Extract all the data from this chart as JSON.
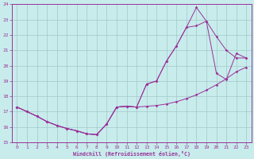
{
  "xlabel": "Windchill (Refroidissement éolien,°C)",
  "background_color": "#c8ecec",
  "line_color": "#993399",
  "grid_color": "#a0c8c8",
  "xlim": [
    -0.5,
    23.5
  ],
  "ylim": [
    15,
    24
  ],
  "yticks": [
    15,
    16,
    17,
    18,
    19,
    20,
    21,
    22,
    23,
    24
  ],
  "xticks": [
    0,
    1,
    2,
    3,
    4,
    5,
    6,
    7,
    8,
    9,
    10,
    11,
    12,
    13,
    14,
    15,
    16,
    17,
    18,
    19,
    20,
    21,
    22,
    23
  ],
  "line1_x": [
    0,
    1,
    2,
    3,
    4,
    5,
    6,
    7,
    8,
    9,
    10,
    11,
    12,
    13,
    14,
    15,
    16,
    17,
    18,
    19,
    20,
    21,
    22,
    23
  ],
  "line1_y": [
    17.3,
    17.0,
    16.7,
    16.35,
    16.1,
    15.9,
    15.75,
    15.55,
    15.5,
    16.2,
    17.3,
    17.35,
    17.3,
    17.35,
    17.4,
    17.5,
    17.65,
    17.85,
    18.1,
    18.4,
    18.75,
    19.15,
    19.6,
    19.9
  ],
  "line2_x": [
    0,
    1,
    2,
    3,
    4,
    5,
    6,
    7,
    8,
    9,
    10,
    11,
    12,
    13,
    14,
    15,
    16,
    17,
    18,
    19,
    20,
    21,
    22,
    23
  ],
  "line2_y": [
    17.3,
    17.0,
    16.7,
    16.35,
    16.1,
    15.9,
    15.75,
    15.55,
    15.5,
    16.2,
    17.3,
    17.35,
    17.3,
    18.8,
    19.0,
    20.3,
    21.3,
    22.5,
    22.6,
    22.9,
    21.9,
    21.0,
    20.5,
    20.5
  ],
  "line3_x": [
    0,
    1,
    2,
    3,
    4,
    5,
    6,
    7,
    8,
    9,
    10,
    11,
    12,
    13,
    14,
    15,
    16,
    17,
    18,
    19,
    20,
    21,
    22,
    23
  ],
  "line3_y": [
    17.3,
    17.0,
    16.7,
    16.35,
    16.1,
    15.9,
    15.75,
    15.55,
    15.5,
    16.2,
    17.3,
    17.35,
    17.3,
    18.8,
    19.0,
    20.3,
    21.3,
    22.5,
    23.8,
    22.9,
    19.5,
    19.1,
    20.8,
    20.5
  ]
}
